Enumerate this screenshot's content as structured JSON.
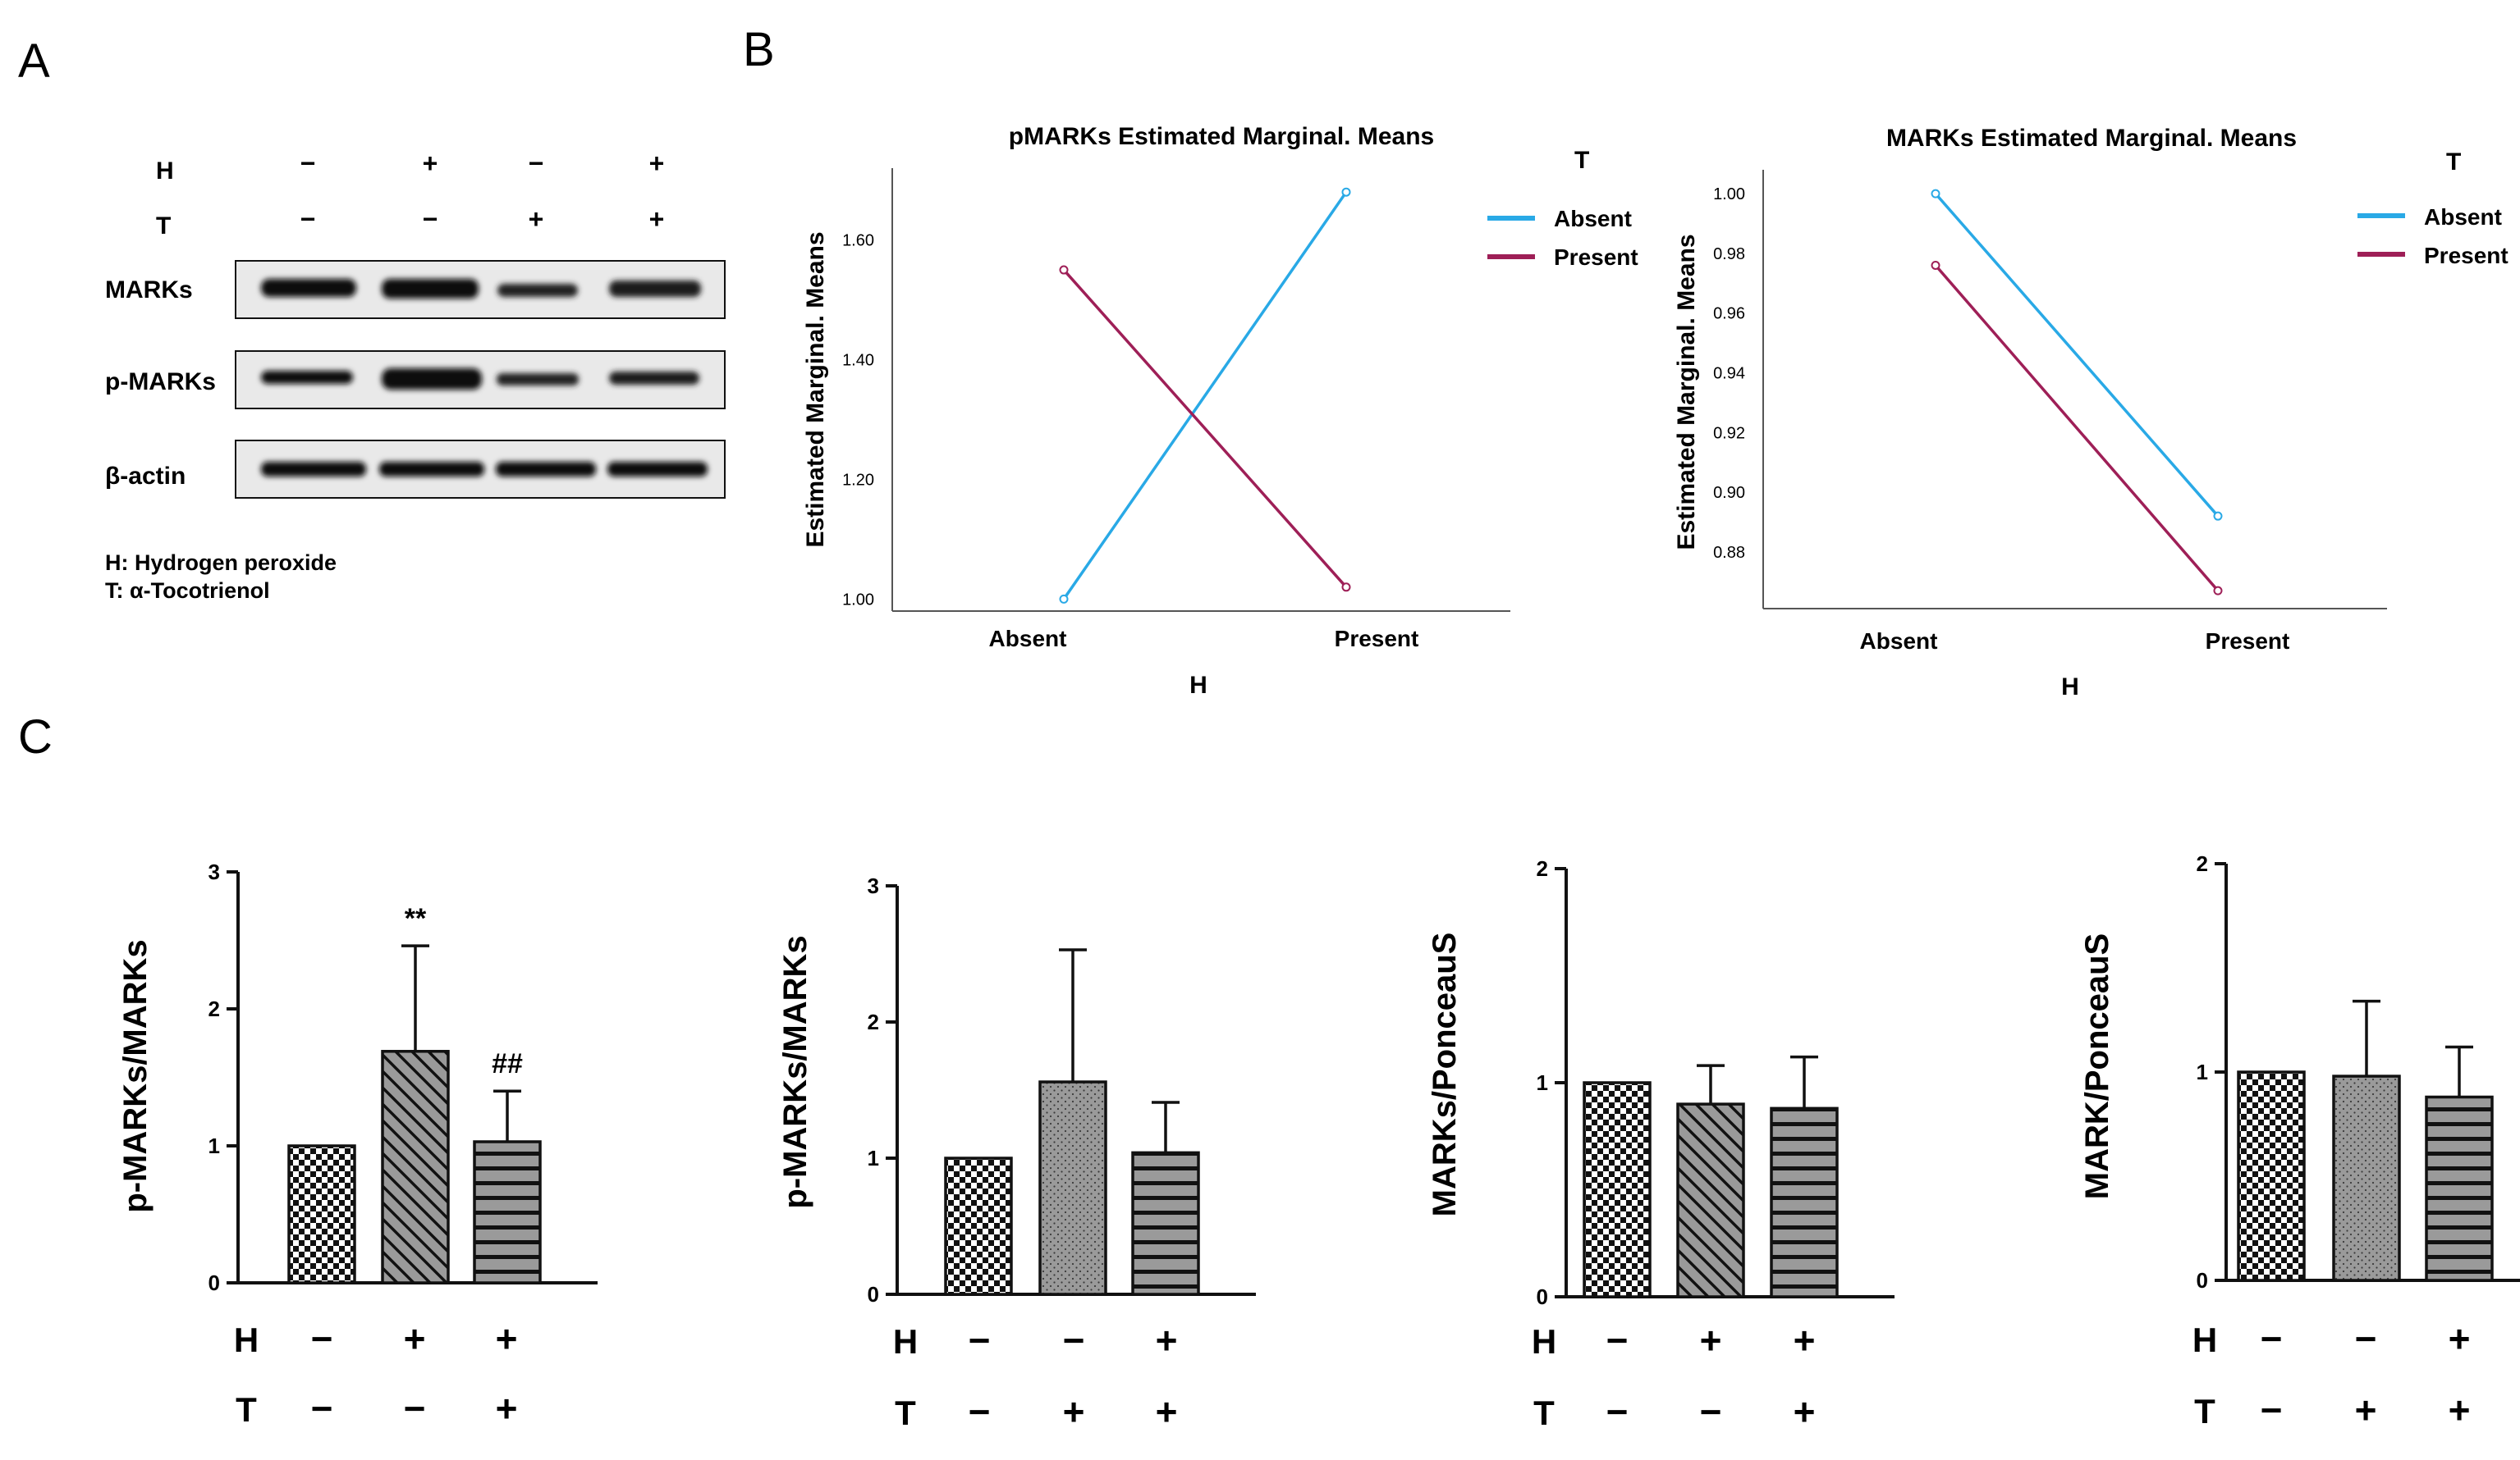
{
  "panel_labels": {
    "a": "A",
    "b": "B",
    "c": "C"
  },
  "colors": {
    "absent": "#29a9e6",
    "present": "#9e1f57",
    "bar_fill": "#9a9a9a",
    "ink": "#111111"
  },
  "blot": {
    "row_h": "H",
    "row_t": "T",
    "h_signs": [
      "−",
      "+",
      "−",
      "+"
    ],
    "t_signs": [
      "−",
      "−",
      "+",
      "+"
    ],
    "bands": [
      "MARKs",
      "p-MARKs",
      "β-actin"
    ],
    "legend_h": "H: Hydrogen peroxide",
    "legend_t": "T: α-Tocotrienol"
  },
  "chart_data": [
    {
      "type": "line",
      "title": "pMARKs Estimated Marginal. Means",
      "xlabel": "H",
      "ylabel": "Estimated Marginal. Means",
      "categories": [
        "Absent",
        "Present"
      ],
      "legend_title": "T",
      "ylim": [
        0.98,
        1.72
      ],
      "yticks": [
        1.0,
        1.2,
        1.4,
        1.6
      ],
      "ytick_labels": [
        "1.00",
        "1.20",
        "1.40",
        "1.60"
      ],
      "series": [
        {
          "name": "Absent",
          "values": [
            1.0,
            1.68
          ]
        },
        {
          "name": "Present",
          "values": [
            1.55,
            1.02
          ]
        }
      ]
    },
    {
      "type": "line",
      "title": "MARKs Estimated Marginal. Means",
      "xlabel": "H",
      "ylabel": "Estimated Marginal. Means",
      "categories": [
        "Absent",
        "Present"
      ],
      "legend_title": "T",
      "ylim": [
        0.861,
        1.008
      ],
      "yticks": [
        0.88,
        0.9,
        0.92,
        0.94,
        0.96,
        0.98,
        1.0
      ],
      "ytick_labels": [
        "0.88",
        "0.90",
        "0.92",
        "0.94",
        "0.96",
        "0.98",
        "1.00"
      ],
      "series": [
        {
          "name": "Absent",
          "values": [
            1.0,
            0.892
          ]
        },
        {
          "name": "Present",
          "values": [
            0.976,
            0.867
          ]
        }
      ]
    },
    {
      "type": "bar",
      "ylabel": "p-MARKs/MARKs",
      "ylim": [
        0,
        3
      ],
      "yticks": [
        0,
        1,
        2,
        3
      ],
      "values": [
        1.0,
        1.69,
        1.03
      ],
      "errors": [
        0,
        0.77,
        0.37
      ],
      "patterns": [
        "checker",
        "diag",
        "horiz"
      ],
      "annotations": [
        "",
        "**",
        "##"
      ],
      "h_signs": [
        "−",
        "+",
        "+"
      ],
      "t_signs": [
        "−",
        "−",
        "+"
      ],
      "row_h": "H",
      "row_t": "T"
    },
    {
      "type": "bar",
      "ylabel": "p-MARKs/MARKs",
      "ylim": [
        0,
        3
      ],
      "yticks": [
        0,
        1,
        2,
        3
      ],
      "values": [
        1.0,
        1.56,
        1.04
      ],
      "errors": [
        0,
        0.97,
        0.37
      ],
      "patterns": [
        "checker",
        "dots",
        "horiz"
      ],
      "annotations": [
        "",
        "",
        ""
      ],
      "h_signs": [
        "−",
        "−",
        "+"
      ],
      "t_signs": [
        "−",
        "+",
        "+"
      ],
      "row_h": "H",
      "row_t": "T"
    },
    {
      "type": "bar",
      "ylabel": "MARKs/PonceauS",
      "ylim": [
        0,
        2
      ],
      "yticks": [
        0,
        1,
        2
      ],
      "values": [
        1.0,
        0.9,
        0.88
      ],
      "errors": [
        0,
        0.18,
        0.24
      ],
      "patterns": [
        "checker",
        "diag",
        "horiz"
      ],
      "annotations": [
        "",
        "",
        ""
      ],
      "h_signs": [
        "−",
        "+",
        "+"
      ],
      "t_signs": [
        "−",
        "−",
        "+"
      ],
      "row_h": "H",
      "row_t": "T"
    },
    {
      "type": "bar",
      "ylabel": "MARK/PonceauS",
      "ylim": [
        0,
        2
      ],
      "yticks": [
        0,
        1,
        2
      ],
      "values": [
        1.0,
        0.98,
        0.88
      ],
      "errors": [
        0,
        0.36,
        0.24
      ],
      "patterns": [
        "checker",
        "dots",
        "horiz"
      ],
      "annotations": [
        "",
        "",
        ""
      ],
      "h_signs": [
        "−",
        "−",
        "+"
      ],
      "t_signs": [
        "−",
        "+",
        "+"
      ],
      "row_h": "H",
      "row_t": "T"
    }
  ]
}
